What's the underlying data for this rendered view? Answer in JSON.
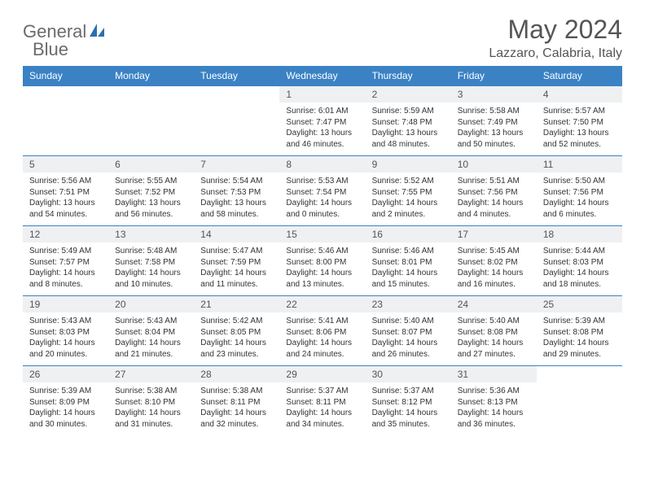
{
  "logo": {
    "text1": "General",
    "text2": "Blue"
  },
  "title": "May 2024",
  "location": "Lazzaro, Calabria, Italy",
  "colors": {
    "header_bg": "#3b82c4",
    "header_fg": "#ffffff",
    "daynum_bg": "#eef0f2",
    "border": "#3b82c4",
    "title_color": "#555555",
    "logo_gray": "#6b6b6b",
    "logo_blue": "#2a6fb0"
  },
  "daysOfWeek": [
    "Sunday",
    "Monday",
    "Tuesday",
    "Wednesday",
    "Thursday",
    "Friday",
    "Saturday"
  ],
  "weeks": [
    [
      null,
      null,
      null,
      {
        "n": "1",
        "sr": "6:01 AM",
        "ss": "7:47 PM",
        "dl": "13 hours and 46 minutes."
      },
      {
        "n": "2",
        "sr": "5:59 AM",
        "ss": "7:48 PM",
        "dl": "13 hours and 48 minutes."
      },
      {
        "n": "3",
        "sr": "5:58 AM",
        "ss": "7:49 PM",
        "dl": "13 hours and 50 minutes."
      },
      {
        "n": "4",
        "sr": "5:57 AM",
        "ss": "7:50 PM",
        "dl": "13 hours and 52 minutes."
      }
    ],
    [
      {
        "n": "5",
        "sr": "5:56 AM",
        "ss": "7:51 PM",
        "dl": "13 hours and 54 minutes."
      },
      {
        "n": "6",
        "sr": "5:55 AM",
        "ss": "7:52 PM",
        "dl": "13 hours and 56 minutes."
      },
      {
        "n": "7",
        "sr": "5:54 AM",
        "ss": "7:53 PM",
        "dl": "13 hours and 58 minutes."
      },
      {
        "n": "8",
        "sr": "5:53 AM",
        "ss": "7:54 PM",
        "dl": "14 hours and 0 minutes."
      },
      {
        "n": "9",
        "sr": "5:52 AM",
        "ss": "7:55 PM",
        "dl": "14 hours and 2 minutes."
      },
      {
        "n": "10",
        "sr": "5:51 AM",
        "ss": "7:56 PM",
        "dl": "14 hours and 4 minutes."
      },
      {
        "n": "11",
        "sr": "5:50 AM",
        "ss": "7:56 PM",
        "dl": "14 hours and 6 minutes."
      }
    ],
    [
      {
        "n": "12",
        "sr": "5:49 AM",
        "ss": "7:57 PM",
        "dl": "14 hours and 8 minutes."
      },
      {
        "n": "13",
        "sr": "5:48 AM",
        "ss": "7:58 PM",
        "dl": "14 hours and 10 minutes."
      },
      {
        "n": "14",
        "sr": "5:47 AM",
        "ss": "7:59 PM",
        "dl": "14 hours and 11 minutes."
      },
      {
        "n": "15",
        "sr": "5:46 AM",
        "ss": "8:00 PM",
        "dl": "14 hours and 13 minutes."
      },
      {
        "n": "16",
        "sr": "5:46 AM",
        "ss": "8:01 PM",
        "dl": "14 hours and 15 minutes."
      },
      {
        "n": "17",
        "sr": "5:45 AM",
        "ss": "8:02 PM",
        "dl": "14 hours and 16 minutes."
      },
      {
        "n": "18",
        "sr": "5:44 AM",
        "ss": "8:03 PM",
        "dl": "14 hours and 18 minutes."
      }
    ],
    [
      {
        "n": "19",
        "sr": "5:43 AM",
        "ss": "8:03 PM",
        "dl": "14 hours and 20 minutes."
      },
      {
        "n": "20",
        "sr": "5:43 AM",
        "ss": "8:04 PM",
        "dl": "14 hours and 21 minutes."
      },
      {
        "n": "21",
        "sr": "5:42 AM",
        "ss": "8:05 PM",
        "dl": "14 hours and 23 minutes."
      },
      {
        "n": "22",
        "sr": "5:41 AM",
        "ss": "8:06 PM",
        "dl": "14 hours and 24 minutes."
      },
      {
        "n": "23",
        "sr": "5:40 AM",
        "ss": "8:07 PM",
        "dl": "14 hours and 26 minutes."
      },
      {
        "n": "24",
        "sr": "5:40 AM",
        "ss": "8:08 PM",
        "dl": "14 hours and 27 minutes."
      },
      {
        "n": "25",
        "sr": "5:39 AM",
        "ss": "8:08 PM",
        "dl": "14 hours and 29 minutes."
      }
    ],
    [
      {
        "n": "26",
        "sr": "5:39 AM",
        "ss": "8:09 PM",
        "dl": "14 hours and 30 minutes."
      },
      {
        "n": "27",
        "sr": "5:38 AM",
        "ss": "8:10 PM",
        "dl": "14 hours and 31 minutes."
      },
      {
        "n": "28",
        "sr": "5:38 AM",
        "ss": "8:11 PM",
        "dl": "14 hours and 32 minutes."
      },
      {
        "n": "29",
        "sr": "5:37 AM",
        "ss": "8:11 PM",
        "dl": "14 hours and 34 minutes."
      },
      {
        "n": "30",
        "sr": "5:37 AM",
        "ss": "8:12 PM",
        "dl": "14 hours and 35 minutes."
      },
      {
        "n": "31",
        "sr": "5:36 AM",
        "ss": "8:13 PM",
        "dl": "14 hours and 36 minutes."
      },
      null
    ]
  ],
  "labels": {
    "sunrise": "Sunrise:",
    "sunset": "Sunset:",
    "daylight": "Daylight:"
  }
}
